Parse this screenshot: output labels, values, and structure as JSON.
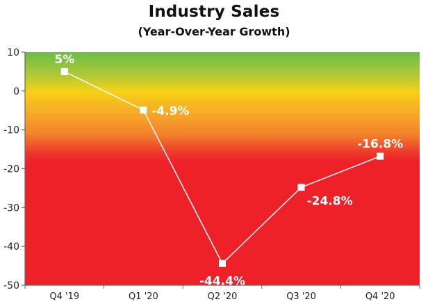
{
  "chart_data": {
    "type": "line",
    "title": "Industry Sales",
    "subtitle": "(Year-Over-Year Growth)",
    "xlabel": "",
    "ylabel": "",
    "categories": [
      "Q4 '19",
      "Q1 '20",
      "Q2 '20",
      "Q3 '20",
      "Q4 '20"
    ],
    "series": [
      {
        "values": [
          5,
          -4.9,
          -44.4,
          -24.8,
          -16.8
        ]
      }
    ],
    "data_labels": [
      "5%",
      "-4.9%",
      "-44.4%",
      "-24.8%",
      "-16.8%"
    ],
    "ylim": [
      -50,
      10
    ],
    "yticks": [
      10,
      0,
      -10,
      -20,
      -30,
      -40,
      -50
    ],
    "grid": false,
    "legend": "none",
    "colors": {
      "line": "#ffffff",
      "marker": "#ffffff",
      "band_top": "#6bbd45",
      "band_middle": "#f7d117",
      "band_orange": "#f4922a",
      "band_bottom": "#ee2129",
      "axis": "#666666"
    }
  }
}
